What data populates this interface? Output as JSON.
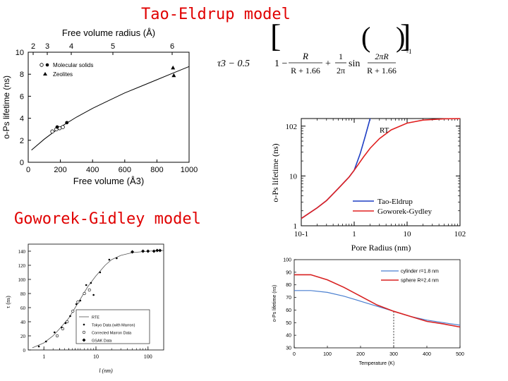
{
  "titles": {
    "tao": "Tao-Eldrup model",
    "goworek": "Goworek-Gidley model"
  },
  "formula": {
    "lhs": "τ3 − 0.5",
    "one": "1 −",
    "R1": "R",
    "den1": "R + 1.66",
    "plus": "+",
    "one2": "1",
    "twopi": "2π",
    "sin": "sin",
    "num2": "2πR",
    "den2": "R + 1.66",
    "exp": "-1"
  },
  "chart_data": [
    {
      "id": "tao-eldrup-volume",
      "type": "scatter",
      "xlabel": "Free volume (Å3)",
      "ylabel": "o-Ps lifetime (ns)",
      "toplabel": "Free volume radius (Å)",
      "xlim": [
        0,
        1000
      ],
      "ylim": [
        0,
        10
      ],
      "xticks": [
        "0",
        "200",
        "400",
        "600",
        "800",
        "1000"
      ],
      "yticks": [
        "0",
        "2",
        "4",
        "6",
        "8",
        "10"
      ],
      "topticks": [
        "2",
        "3",
        "4",
        "5",
        "6"
      ],
      "legend": [
        "Molecular solids",
        "Zeolites"
      ],
      "series": [
        {
          "name": "Molecular solids",
          "marker": "open-circle",
          "x": [
            150,
            175,
            195,
            215
          ],
          "y": [
            2.8,
            3.0,
            3.1,
            3.2
          ]
        },
        {
          "name": "Molecular solids",
          "marker": "filled-circle",
          "x": [
            180,
            240
          ],
          "y": [
            3.2,
            3.6
          ]
        },
        {
          "name": "Zeolites",
          "marker": "triangle",
          "x": [
            900,
            905
          ],
          "y": [
            8.6,
            7.9
          ]
        },
        {
          "name": "",
          "marker": "line",
          "x": [
            20,
            100,
            200,
            300,
            400,
            500,
            600,
            700,
            800,
            900,
            1000
          ],
          "y": [
            1.1,
            2.1,
            3.2,
            4.1,
            4.9,
            5.6,
            6.3,
            6.9,
            7.5,
            8.1,
            8.7
          ]
        }
      ]
    },
    {
      "id": "lifetime-vs-radius",
      "type": "line",
      "xlabel": "Pore Radius (nm)",
      "ylabel": "o-Ps lifetime (ns)",
      "xscale": "log",
      "yscale": "log",
      "xlim": [
        0.1,
        100
      ],
      "ylim": [
        1,
        142
      ],
      "xticks": [
        "10-1",
        "1",
        "10",
        "102"
      ],
      "yticks": [
        "1",
        "10",
        "102"
      ],
      "annotation": "RT",
      "legend": "bottom-right",
      "series": [
        {
          "name": "Tao-Eldrup",
          "color": "#1f3fc4",
          "x": [
            0.1,
            0.2,
            0.3,
            0.5,
            0.8,
            1.0,
            1.3,
            1.6,
            2.0
          ],
          "y": [
            1.4,
            2.3,
            3.2,
            5.6,
            9.5,
            13,
            28,
            60,
            142
          ]
        },
        {
          "name": "Goworek-Gydley",
          "color": "#e02020",
          "x": [
            0.1,
            0.2,
            0.3,
            0.5,
            0.8,
            1.0,
            1.5,
            2.0,
            3.0,
            5.0,
            10,
            20,
            50,
            100
          ],
          "y": [
            1.4,
            2.3,
            3.2,
            5.6,
            9.5,
            13,
            24,
            36,
            56,
            84,
            115,
            132,
            140,
            141
          ]
        }
      ]
    },
    {
      "id": "goworek-data",
      "type": "scatter",
      "xlabel": "l (nm)",
      "ylabel": "τ (ns)",
      "xscale": "log",
      "xlim": [
        0.5,
        200
      ],
      "ylim": [
        0,
        150
      ],
      "xticks": [
        "1",
        "10",
        "100"
      ],
      "yticks": [
        "0",
        "20",
        "40",
        "60",
        "80",
        "100",
        "120",
        "140"
      ],
      "legend": [
        "RTE",
        "Tokyo Data (with Marron)",
        "Corrected Marron Data",
        "GSAK Data"
      ],
      "series": [
        {
          "name": "RTE",
          "marker": "line",
          "x": [
            0.6,
            1,
            1.5,
            2,
            3,
            4,
            5,
            7,
            10,
            15,
            20,
            30,
            50,
            100,
            200
          ],
          "y": [
            3,
            10,
            20,
            30,
            45,
            60,
            72,
            90,
            105,
            120,
            128,
            134,
            138,
            140,
            141
          ]
        },
        {
          "name": "Tokyo Data (with Marron)",
          "marker": "dot",
          "x": [
            0.8,
            1.1,
            1.6,
            2.2,
            2.6,
            3.2,
            3.6,
            4.2,
            5.0,
            5.5,
            6.5,
            8.0,
            9.0,
            12,
            18,
            25
          ],
          "y": [
            5,
            12,
            25,
            32,
            38,
            48,
            55,
            65,
            70,
            50,
            92,
            95,
            78,
            110,
            128,
            130
          ]
        },
        {
          "name": "Corrected Marron Data",
          "marker": "open-circle",
          "x": [
            1.8,
            2.3,
            2.8,
            3.6,
            4.5,
            6.0,
            7.5
          ],
          "y": [
            20,
            30,
            40,
            55,
            68,
            80,
            85
          ]
        },
        {
          "name": "GSAK Data",
          "marker": "filled-diamond",
          "x": [
            50,
            80,
            100,
            130,
            150,
            170
          ],
          "y": [
            139,
            140,
            140,
            140,
            141,
            141
          ]
        }
      ]
    },
    {
      "id": "lifetime-vs-temperature",
      "type": "line",
      "xlabel": "Temperature (K)",
      "ylabel": "o-Ps lifetime (ns)",
      "xlim": [
        0,
        500
      ],
      "ylim": [
        30,
        100
      ],
      "xticks": [
        "0",
        "100",
        "200",
        "300",
        "400",
        "500"
      ],
      "yticks": [
        "30",
        "40",
        "50",
        "60",
        "70",
        "80",
        "90",
        "100"
      ],
      "legend": "top-right",
      "marker_line_x": 300,
      "series": [
        {
          "name": "cylinder r=1.8 nm",
          "color": "#4a7fd0",
          "x": [
            0,
            50,
            100,
            150,
            200,
            250,
            300,
            350,
            400,
            450,
            500
          ],
          "y": [
            75.5,
            75.5,
            74,
            71,
            67,
            63,
            59,
            55,
            52,
            50,
            48
          ]
        },
        {
          "name": "sphere R=2.4 nm",
          "color": "#d82020",
          "x": [
            0,
            50,
            100,
            150,
            200,
            250,
            300,
            350,
            400,
            450,
            500
          ],
          "y": [
            88,
            88,
            84,
            78,
            71,
            64,
            59,
            55,
            51,
            49,
            46.5
          ]
        }
      ]
    }
  ]
}
